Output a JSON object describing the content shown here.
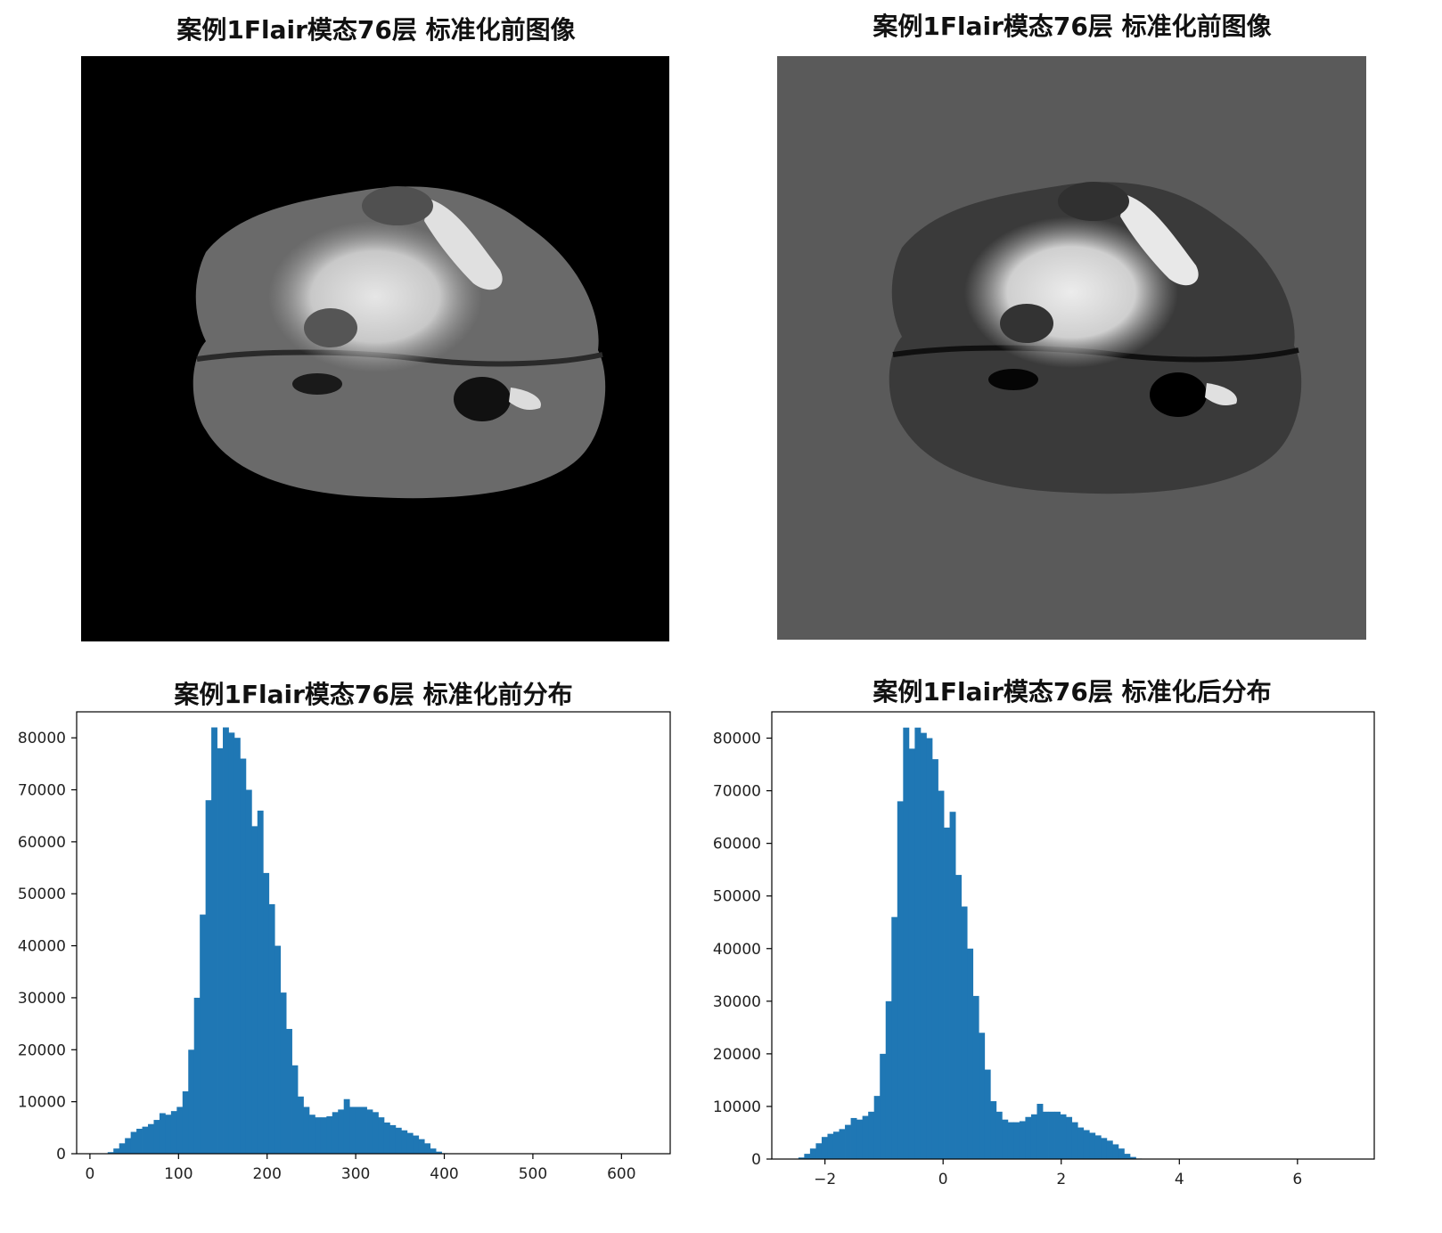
{
  "panels": {
    "top_left": {
      "title": "案例1Flair模态76层  标准化前图像",
      "background": "#000000"
    },
    "top_right": {
      "title": "案例1Flair模态76层  标准化前图像",
      "background": "#5a5a5a"
    }
  },
  "chart_data": [
    {
      "type": "bar",
      "title": "案例1Flair模态76层  标准化前分布",
      "xlabel": "",
      "ylabel": "",
      "xlim": [
        -15,
        655
      ],
      "ylim": [
        0,
        85000
      ],
      "xticks": [
        0,
        100,
        200,
        300,
        400,
        500,
        600
      ],
      "yticks": [
        0,
        10000,
        20000,
        30000,
        40000,
        50000,
        60000,
        70000,
        80000
      ],
      "bar_color": "#1f77b4",
      "bin_start": 20,
      "bin_width": 6.5,
      "values": [
        300,
        1000,
        2000,
        3000,
        4200,
        4800,
        5200,
        5700,
        6500,
        7800,
        7500,
        8200,
        9000,
        12000,
        20000,
        30000,
        46000,
        68000,
        82000,
        78000,
        82000,
        81000,
        80000,
        76000,
        70000,
        63000,
        66000,
        54000,
        48000,
        40000,
        31000,
        24000,
        17000,
        11000,
        9000,
        7500,
        7000,
        7000,
        7200,
        8000,
        8500,
        10500,
        9000,
        9000,
        9000,
        8500,
        8000,
        7000,
        6000,
        5500,
        5000,
        4500,
        4000,
        3500,
        2800,
        2000,
        1000,
        400,
        100
      ]
    },
    {
      "type": "bar",
      "title": "案例1Flair模态76层  标准化后分布",
      "xlabel": "",
      "ylabel": "",
      "xlim": [
        -2.9,
        7.3
      ],
      "ylim": [
        0,
        85000
      ],
      "xticks": [
        -2,
        0,
        2,
        4,
        6
      ],
      "yticks": [
        0,
        10000,
        20000,
        30000,
        40000,
        50000,
        60000,
        70000,
        80000
      ],
      "bar_color": "#1f77b4",
      "bin_start": -2.45,
      "bin_width": 0.0985,
      "values": [
        300,
        1000,
        2000,
        3000,
        4200,
        4800,
        5200,
        5700,
        6500,
        7800,
        7500,
        8200,
        9000,
        12000,
        20000,
        30000,
        46000,
        68000,
        82000,
        78000,
        82000,
        81000,
        80000,
        76000,
        70000,
        63000,
        66000,
        54000,
        48000,
        40000,
        31000,
        24000,
        17000,
        11000,
        9000,
        7500,
        7000,
        7000,
        7200,
        8000,
        8500,
        10500,
        9000,
        9000,
        9000,
        8500,
        8000,
        7000,
        6000,
        5500,
        5000,
        4500,
        4000,
        3500,
        2800,
        2000,
        1000,
        400,
        100
      ]
    }
  ]
}
